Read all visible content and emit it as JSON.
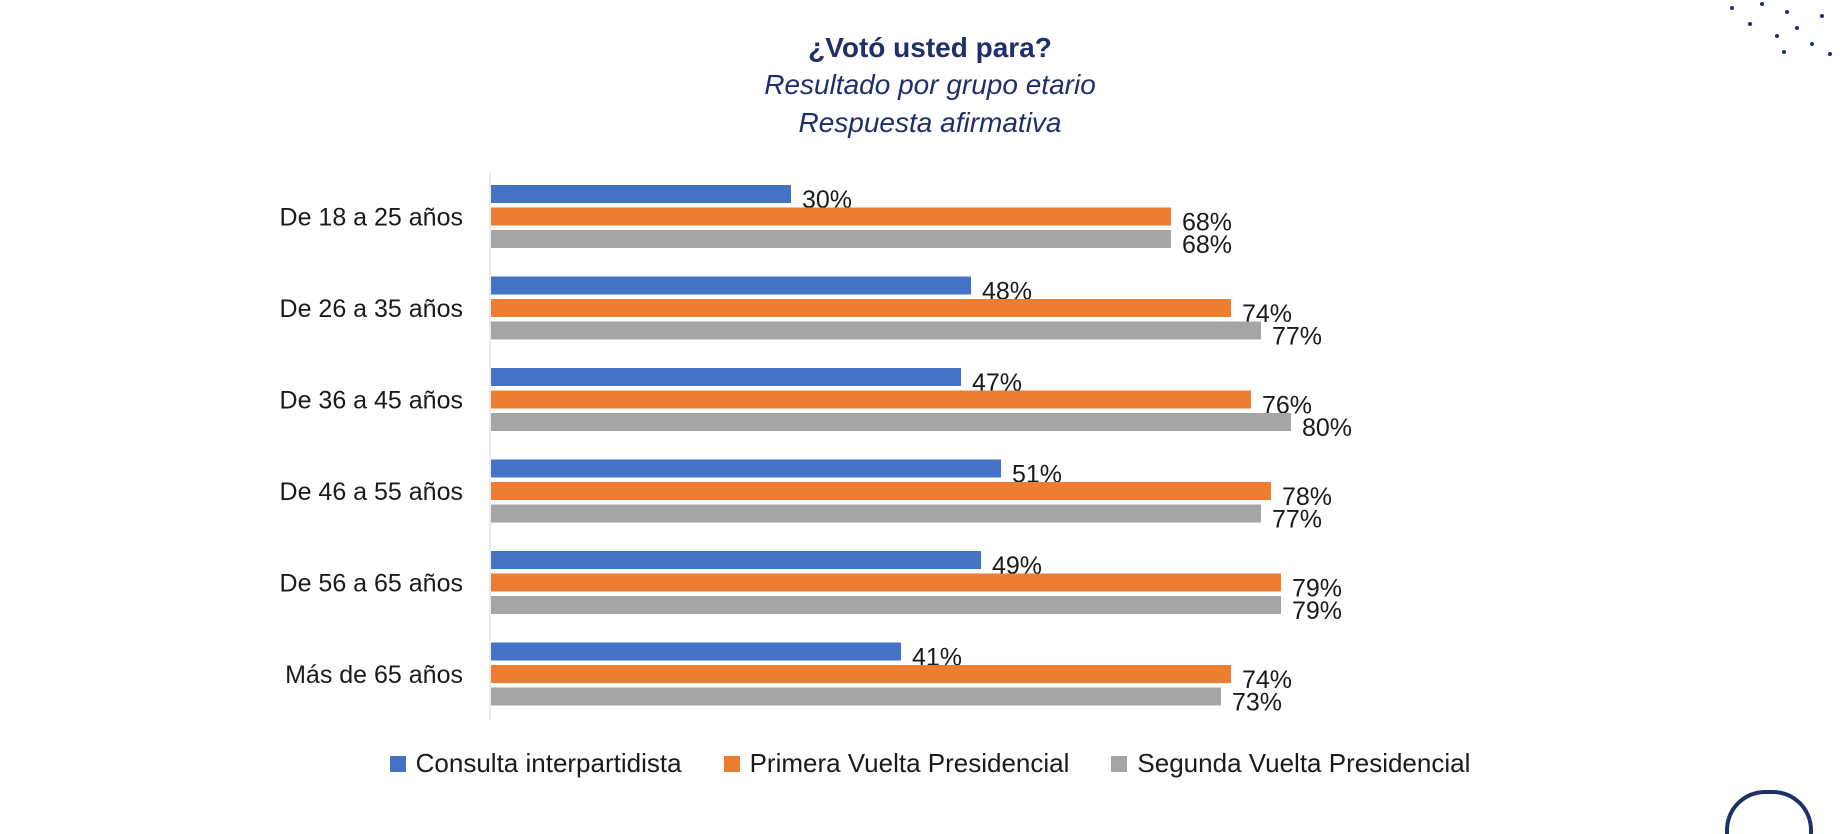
{
  "header": {
    "title": "¿Votó usted para?",
    "subtitle_1": "Resultado por grupo etario",
    "subtitle_2": "Respuesta afirmativa"
  },
  "colors": {
    "consulta": "#4472c4",
    "primera": "#ed7d31",
    "segunda": "#a5a5a5",
    "title": "#1f2f6b"
  },
  "chart_data": {
    "type": "bar",
    "orientation": "horizontal",
    "title": "¿Votó usted para?",
    "subtitle": "Resultado por grupo etario / Respuesta afirmativa",
    "categories": [
      "De 18 a 25 años",
      "De 26 a 35 años",
      "De 36 a 45 años",
      "De 46 a 55 años",
      "De 56 a 65 años",
      "Más de 65 años"
    ],
    "series": [
      {
        "name": "Consulta interpartidista",
        "values": [
          30,
          48,
          47,
          51,
          49,
          41
        ],
        "color": "#4472c4"
      },
      {
        "name": "Primera Vuelta Presidencial",
        "values": [
          68,
          74,
          76,
          78,
          79,
          74
        ],
        "color": "#ed7d31"
      },
      {
        "name": "Segunda Vuelta Presidencial",
        "values": [
          68,
          77,
          80,
          77,
          79,
          73
        ],
        "color": "#a5a5a5"
      }
    ],
    "value_suffix": "%",
    "xlim": [
      0,
      100
    ],
    "grid": false,
    "legend_position": "bottom"
  },
  "legend": [
    {
      "label": "Consulta interpartidista",
      "color": "#4472c4"
    },
    {
      "label": "Primera Vuelta Presidencial",
      "color": "#ed7d31"
    },
    {
      "label": "Segunda Vuelta Presidencial",
      "color": "#a5a5a5"
    }
  ]
}
